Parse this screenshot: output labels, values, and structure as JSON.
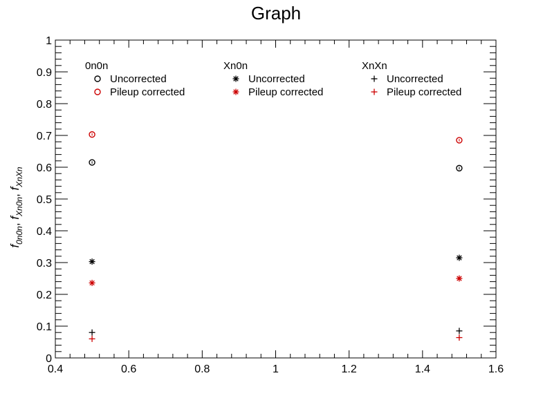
{
  "chart_data": {
    "type": "scatter",
    "title": "Graph",
    "xlabel": "",
    "ylabel": "f_{0n0n}, f_{Xn0n}, f_{XnXn}",
    "ylabel_parts": [
      {
        "base": "f",
        "sub": "0n0n",
        "sep": ", "
      },
      {
        "base": "f",
        "sub": "Xn0n",
        "sep": ", "
      },
      {
        "base": "f",
        "sub": "XnXn",
        "sep": ""
      }
    ],
    "xlim": [
      0.4,
      1.6
    ],
    "ylim": [
      0,
      1
    ],
    "x_ticks": [
      "0.4",
      "0.6",
      "0.8",
      "1",
      "1.2",
      "1.4",
      "1.6"
    ],
    "y_ticks": [
      "0",
      "0.1",
      "0.2",
      "0.3",
      "0.4",
      "0.5",
      "0.6",
      "0.7",
      "0.8",
      "0.9",
      "1"
    ],
    "grid": false,
    "legend_groups": [
      {
        "title": "0n0n",
        "entries": [
          "Uncorrected",
          "Pileup corrected"
        ]
      },
      {
        "title": "Xn0n",
        "entries": [
          "Uncorrected",
          "Pileup corrected"
        ]
      },
      {
        "title": "XnXn",
        "entries": [
          "Uncorrected",
          "Pileup corrected"
        ]
      }
    ],
    "series": [
      {
        "group": "0n0n",
        "label": "Uncorrected",
        "marker": "circle",
        "color": "#000000",
        "x": [
          0.5,
          1.5
        ],
        "y": [
          0.615,
          0.597
        ],
        "yerr": [
          0.004,
          0.004
        ]
      },
      {
        "group": "0n0n",
        "label": "Pileup corrected",
        "marker": "circle",
        "color": "#cc0000",
        "x": [
          0.5,
          1.5
        ],
        "y": [
          0.703,
          0.685
        ],
        "yerr": [
          0.004,
          0.004
        ]
      },
      {
        "group": "Xn0n",
        "label": "Uncorrected",
        "marker": "star",
        "color": "#000000",
        "x": [
          0.5,
          1.5
        ],
        "y": [
          0.303,
          0.315
        ],
        "yerr": [
          0.004,
          0.004
        ]
      },
      {
        "group": "Xn0n",
        "label": "Pileup corrected",
        "marker": "star",
        "color": "#cc0000",
        "x": [
          0.5,
          1.5
        ],
        "y": [
          0.236,
          0.25
        ],
        "yerr": [
          0.004,
          0.004
        ]
      },
      {
        "group": "XnXn",
        "label": "Uncorrected",
        "marker": "plus",
        "color": "#000000",
        "x": [
          0.5,
          1.5
        ],
        "y": [
          0.08,
          0.085
        ],
        "yerr": [
          0.003,
          0.003
        ]
      },
      {
        "group": "XnXn",
        "label": "Pileup corrected",
        "marker": "plus",
        "color": "#cc0000",
        "x": [
          0.5,
          1.5
        ],
        "y": [
          0.06,
          0.064
        ],
        "yerr": [
          0.003,
          0.003
        ]
      }
    ]
  }
}
